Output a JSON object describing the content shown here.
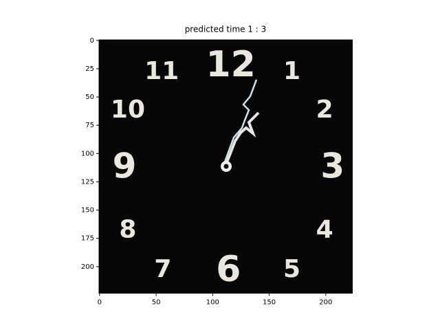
{
  "chart_data": {
    "type": "image",
    "title": "predicted time 1 : 3",
    "xlim": [
      -0.5,
      223.5
    ],
    "ylim": [
      223.5,
      -0.5
    ],
    "xticks": [
      0,
      50,
      100,
      150,
      200
    ],
    "yticks": [
      0,
      25,
      50,
      75,
      100,
      125,
      150,
      175,
      200
    ],
    "image_texts": [
      "12",
      "1",
      "2",
      "3",
      "4",
      "5",
      "6",
      "7",
      "8",
      "9",
      "10",
      "11"
    ]
  }
}
